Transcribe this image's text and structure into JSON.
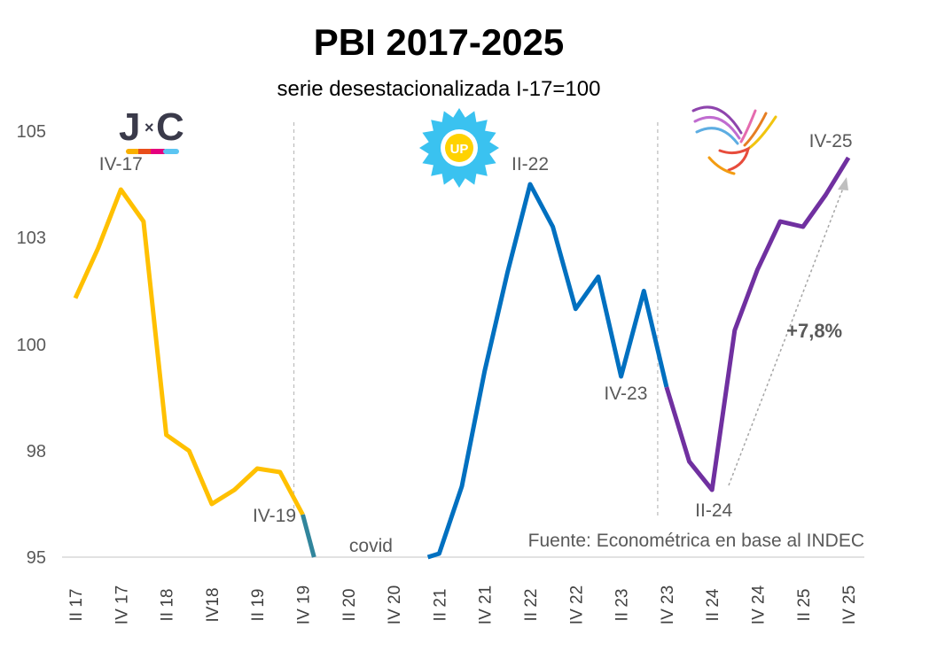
{
  "chart_data": {
    "type": "line",
    "title": "PBI 2017-2025",
    "subtitle": "serie desestacionalizada I-17=100",
    "source": "Fuente: Econométrica en base al INDEC",
    "y_ticks": [
      "95",
      "98",
      "100",
      "103",
      "105"
    ],
    "x_ticks": [
      "II 17",
      "IV 17",
      "II 18",
      "IV18",
      "II 19",
      "IV 19",
      "II 20",
      "IV 20",
      "II 21",
      "IV 21",
      "II 22",
      "IV 22",
      "II 23",
      "IV 23",
      "II 24",
      "IV 24",
      "II 25",
      "IV 25"
    ],
    "grid": false,
    "series": [
      {
        "color": "#FFC000",
        "values": [
          [
            0,
            101.3
          ],
          [
            1,
            102.7
          ],
          [
            2,
            103.9
          ],
          [
            3,
            103.3
          ],
          [
            4,
            98.3
          ],
          [
            5,
            98.0
          ],
          [
            6,
            96.5
          ],
          [
            7,
            96.9
          ],
          [
            8,
            97.5
          ],
          [
            9,
            97.4
          ],
          [
            10,
            96.2
          ]
        ]
      },
      {
        "color": "#31859C",
        "values": [
          [
            10,
            96.2
          ],
          [
            10.5,
            95.0
          ]
        ]
      },
      {
        "color": "#0070C0",
        "values": [
          [
            15.5,
            95.0
          ],
          [
            16,
            95.1
          ],
          [
            17,
            97.0
          ],
          [
            18,
            99.5
          ],
          [
            19,
            102.0
          ],
          [
            20,
            104.0
          ],
          [
            21,
            103.2
          ],
          [
            22,
            101.0
          ],
          [
            23,
            101.9
          ],
          [
            24,
            99.4
          ],
          [
            25,
            101.5
          ],
          [
            26,
            99.2
          ]
        ]
      },
      {
        "color": "#7030A0",
        "values": [
          [
            26,
            99.2
          ],
          [
            27,
            97.7
          ],
          [
            28,
            96.9
          ],
          [
            29,
            100.4
          ],
          [
            30,
            102.1
          ],
          [
            31,
            103.3
          ],
          [
            32,
            103.2
          ],
          [
            33,
            103.8
          ],
          [
            34,
            104.5
          ]
        ]
      }
    ],
    "dividers_at": [
      10,
      26
    ],
    "annotations": [
      {
        "text": "IV-17",
        "x": 2,
        "y": 103.9
      },
      {
        "text": "IV-19",
        "x": 10,
        "y": 96.2
      },
      {
        "text": "covid",
        "x": 13,
        "y": 95.0
      },
      {
        "text": "II-22",
        "x": 20,
        "y": 104.0
      },
      {
        "text": "IV-23",
        "x": 26,
        "y": 99.2
      },
      {
        "text": "II-24",
        "x": 28,
        "y": 96.9
      },
      {
        "text": "IV-25",
        "x": 34,
        "y": 104.5
      },
      {
        "text": "+7,8%",
        "x": 32.5,
        "y": 100.2
      }
    ],
    "logos": [
      {
        "name": "jxc-logo",
        "text": "J×C"
      },
      {
        "name": "up-logo",
        "text": "UP"
      },
      {
        "name": "lla-logo",
        "text": "LLA"
      }
    ]
  }
}
